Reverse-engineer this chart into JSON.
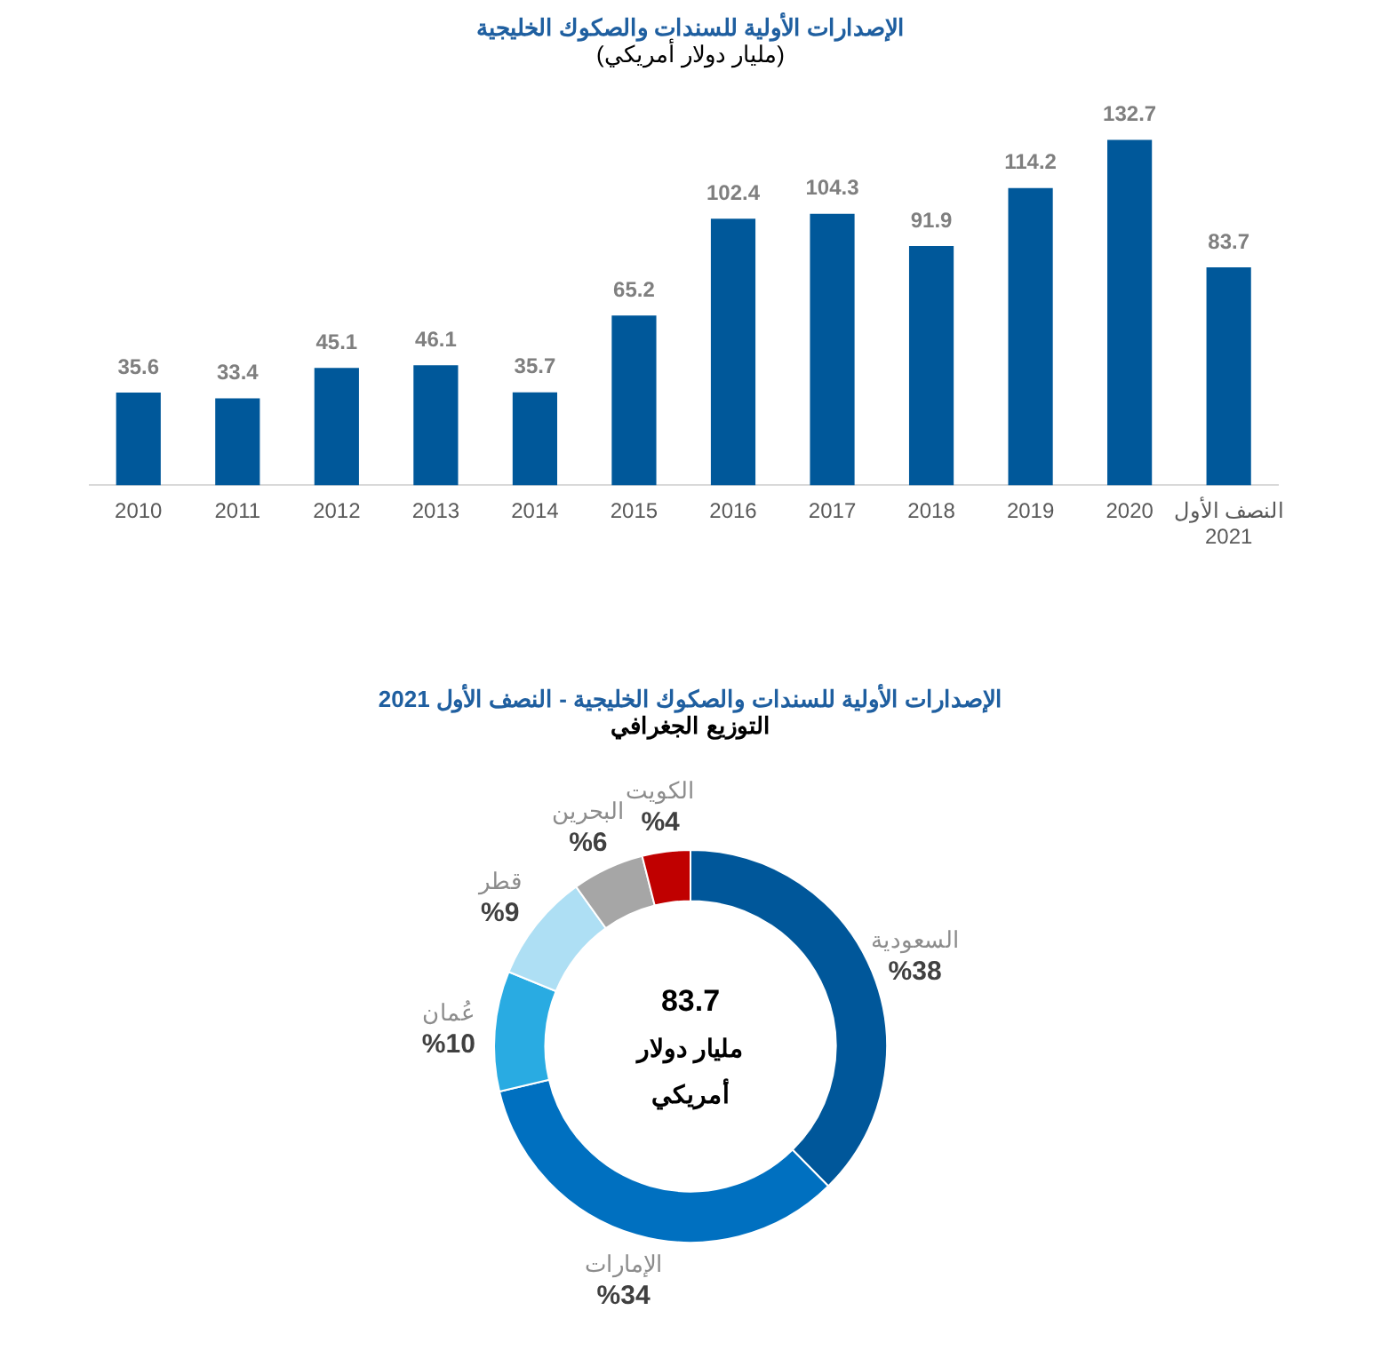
{
  "chart_data": [
    {
      "type": "bar",
      "title": "الإصدارات الأولية للسندات والصكوك الخليجية",
      "subtitle": "(مليار دولار أمريكي)",
      "categories": [
        "2010",
        "2011",
        "2012",
        "2013",
        "2014",
        "2015",
        "2016",
        "2017",
        "2018",
        "2019",
        "2020",
        "النصف الأول 2021"
      ],
      "values": [
        35.6,
        33.4,
        45.1,
        46.1,
        35.7,
        65.2,
        102.4,
        104.3,
        91.9,
        114.2,
        132.7,
        83.7
      ],
      "color": "#00589a",
      "data_labels": true,
      "grid": false,
      "legend": false,
      "tick_labels": "x"
    },
    {
      "type": "donut",
      "title": "الإصدارات الأولية للسندات والصكوك الخليجية - النصف الأول 2021",
      "subtitle": "التوزيع الجغرافي",
      "categories": [
        "السعودية",
        "الإمارات",
        "عُمان",
        "قطر",
        "البحرين",
        "الكويت"
      ],
      "values": [
        38,
        34,
        10,
        9,
        6,
        4
      ],
      "value_labels": [
        "%38",
        "%34",
        "%10",
        "%9",
        "%6",
        "%4"
      ],
      "colors": [
        "#00579a",
        "#0070c0",
        "#29abe2",
        "#aedff4",
        "#a6a6a6",
        "#c00000"
      ],
      "annotations": [
        "83.7",
        "مليار دولار أمريكي"
      ],
      "legend": false
    }
  ]
}
